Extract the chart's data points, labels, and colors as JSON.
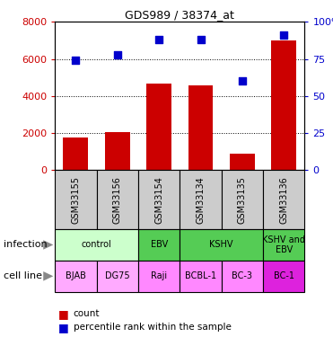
{
  "title": "GDS989 / 38374_at",
  "categories": [
    "GSM33155",
    "GSM33156",
    "GSM33154",
    "GSM33134",
    "GSM33135",
    "GSM33136"
  ],
  "bar_values": [
    1750,
    2050,
    4650,
    4600,
    900,
    7000
  ],
  "percentile_values": [
    74,
    78,
    88,
    88,
    60,
    91
  ],
  "bar_color": "#cc0000",
  "dot_color": "#0000cc",
  "ylim_left": [
    0,
    8000
  ],
  "ylim_right": [
    0,
    100
  ],
  "yticks_left": [
    0,
    2000,
    4000,
    6000,
    8000
  ],
  "yticks_right": [
    0,
    25,
    50,
    75,
    100
  ],
  "ytick_labels_right": [
    "0",
    "25",
    "50",
    "75",
    "100%"
  ],
  "left_label_color": "#cc0000",
  "right_label_color": "#0000cc",
  "background_color": "#ffffff",
  "gsm_bg_color": "#cccccc",
  "infection_data": [
    {
      "label": "control",
      "start": 0,
      "end": 2,
      "color": "#ccffcc"
    },
    {
      "label": "EBV",
      "start": 2,
      "end": 3,
      "color": "#55cc55"
    },
    {
      "label": "KSHV",
      "start": 3,
      "end": 5,
      "color": "#55cc55"
    },
    {
      "label": "KSHV and\nEBV",
      "start": 5,
      "end": 6,
      "color": "#55cc55"
    }
  ],
  "cell_data": [
    {
      "label": "BJAB",
      "start": 0,
      "end": 1,
      "color": "#ffaaff"
    },
    {
      "label": "DG75",
      "start": 1,
      "end": 2,
      "color": "#ffaaff"
    },
    {
      "label": "Raji",
      "start": 2,
      "end": 3,
      "color": "#ff88ff"
    },
    {
      "label": "BCBL-1",
      "start": 3,
      "end": 4,
      "color": "#ff88ff"
    },
    {
      "label": "BC-3",
      "start": 4,
      "end": 5,
      "color": "#ff88ff"
    },
    {
      "label": "BC-1",
      "start": 5,
      "end": 6,
      "color": "#dd22dd"
    }
  ]
}
